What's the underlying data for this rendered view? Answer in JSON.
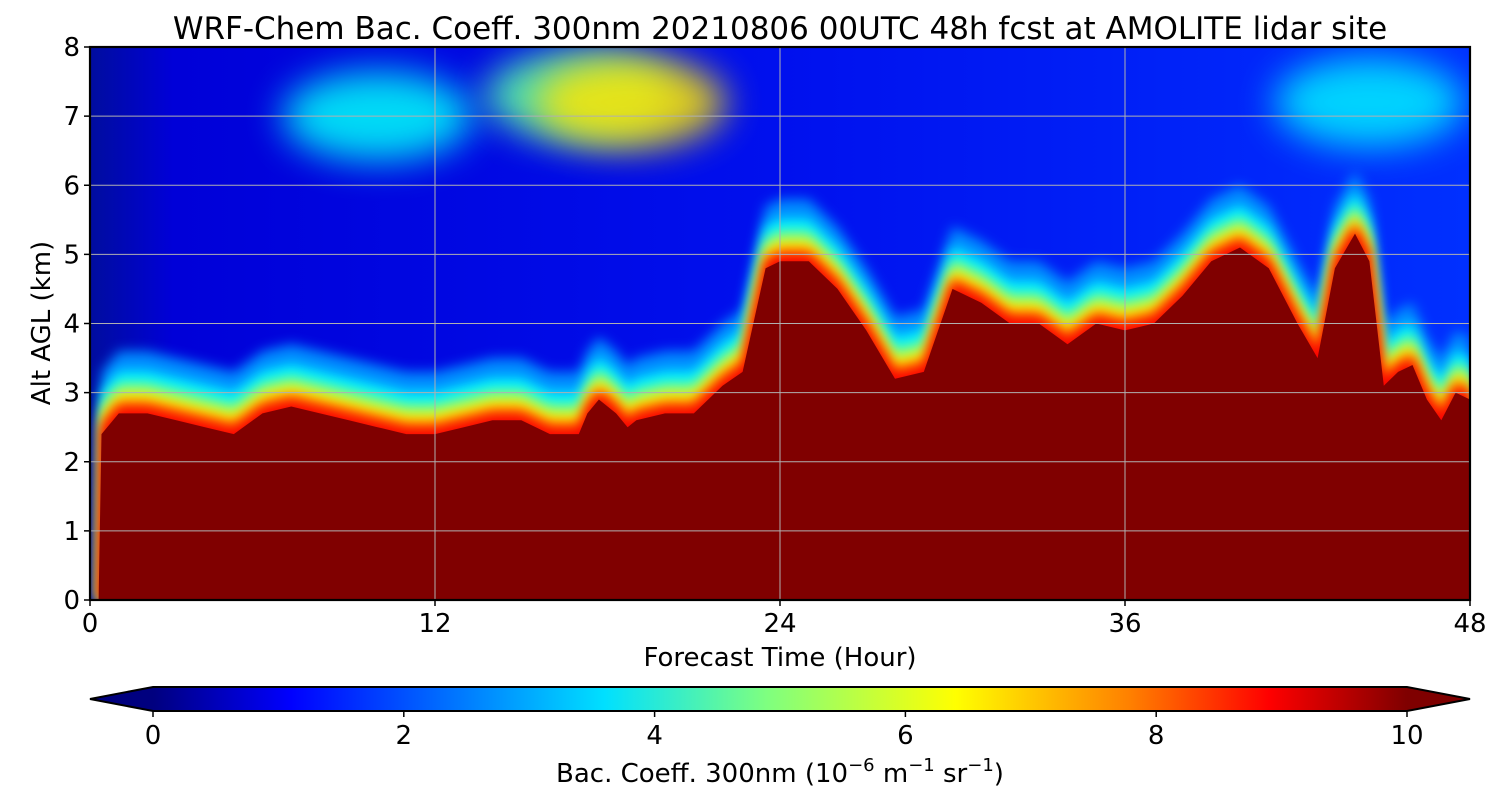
{
  "chart_data": {
    "type": "heatmap",
    "title": "WRF-Chem Bac. Coeff. 300nm  20210806 00UTC 48h fcst at AMOLITE lidar site",
    "xlabel": "Forecast Time (Hour)",
    "ylabel": "Alt AGL (km)",
    "xlim": [
      0,
      48
    ],
    "ylim": [
      0,
      8
    ],
    "x_ticks": [
      "0",
      "12",
      "24",
      "36",
      "48"
    ],
    "y_ticks": [
      "0",
      "1",
      "2",
      "3",
      "4",
      "5",
      "6",
      "7",
      "8"
    ],
    "grid": true,
    "colorbar": {
      "label_main": "Bac. Coeff. 300nm  (10",
      "label_exp1": "−6",
      "label_unit1": " m",
      "label_exp2": "−1",
      "label_unit2": " sr",
      "label_exp3": "−1",
      "label_close": ")",
      "ticks": [
        "0",
        "2",
        "4",
        "6",
        "8",
        "10"
      ],
      "range": [
        0,
        10
      ],
      "extend": "both",
      "colormap": "jet",
      "colors": [
        "#00007f",
        "#0000ff",
        "#007fff",
        "#00ffff",
        "#7fff7f",
        "#ffff00",
        "#ff7f00",
        "#ff0000",
        "#7f0000"
      ]
    },
    "aerosol_layer_top_km": {
      "x": [
        0.0,
        0.3,
        0.4,
        1.0,
        2.0,
        3.0,
        4.0,
        5.0,
        6.0,
        7.0,
        8.0,
        9.0,
        10.0,
        11.0,
        12.0,
        13.0,
        14.0,
        15.0,
        16.0,
        17.0,
        17.3,
        17.7,
        18.3,
        18.7,
        19.0,
        20.0,
        21.0,
        22.0,
        22.7,
        23.5,
        24.0,
        25.0,
        26.0,
        27.0,
        28.0,
        29.0,
        30.0,
        31.0,
        32.0,
        33.0,
        34.0,
        35.0,
        36.0,
        37.0,
        38.0,
        39.0,
        40.0,
        41.0,
        42.0,
        42.7,
        43.3,
        44.0,
        44.5,
        45.0,
        45.5,
        46.0,
        46.5,
        47.0,
        47.5,
        48.0
      ],
      "y": [
        0.0,
        0.0,
        2.4,
        2.7,
        2.7,
        2.6,
        2.5,
        2.4,
        2.7,
        2.8,
        2.7,
        2.6,
        2.5,
        2.4,
        2.4,
        2.5,
        2.6,
        2.6,
        2.4,
        2.4,
        2.7,
        2.9,
        2.7,
        2.5,
        2.6,
        2.7,
        2.7,
        3.1,
        3.3,
        4.8,
        4.9,
        4.9,
        4.5,
        3.9,
        3.2,
        3.3,
        4.5,
        4.3,
        4.0,
        4.0,
        3.7,
        4.0,
        3.9,
        4.0,
        4.4,
        4.9,
        5.1,
        4.8,
        4.0,
        3.5,
        4.8,
        5.3,
        4.9,
        3.1,
        3.3,
        3.4,
        2.9,
        2.6,
        3.0,
        2.9
      ]
    },
    "upper_fields": [
      {
        "name": "upper-left plume",
        "x": 10,
        "y": 7.0,
        "value": 3.8
      },
      {
        "name": "center-top plume",
        "x": 17,
        "y": 7.3,
        "value": 4.6
      },
      {
        "name": "hotspot 18.8h",
        "x": 18.8,
        "y": 7.2,
        "value": 6.5
      },
      {
        "name": "right column 44.5h",
        "x": 44.5,
        "y": 7.2,
        "value": 3.6
      }
    ]
  }
}
